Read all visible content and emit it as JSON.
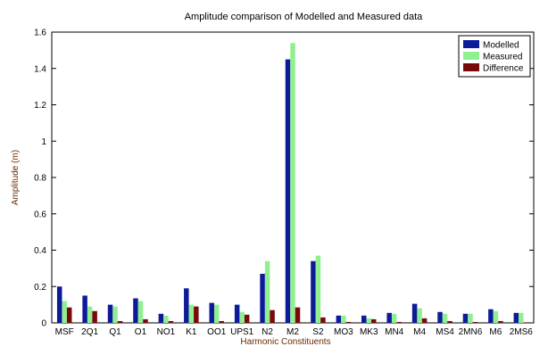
{
  "chart_data": {
    "type": "bar",
    "title": "Amplitude comparison of Modelled and Measured data",
    "xlabel": "Harmonic Constituents",
    "ylabel": "Amplitude (m)",
    "ylim": [
      0,
      1.6
    ],
    "yticks": [
      0,
      0.2,
      0.4,
      0.6,
      0.8,
      1,
      1.2,
      1.4,
      1.6
    ],
    "ytick_labels": [
      "0",
      "0.2",
      "0.4",
      "0.6",
      "0.8",
      "1",
      "1.2",
      "1.4",
      "1.6"
    ],
    "grid": false,
    "legend_position": "top-right",
    "categories": [
      "MSF",
      "2Q1",
      "Q1",
      "O1",
      "NO1",
      "K1",
      "OO1",
      "UPS1",
      "N2",
      "M2",
      "S2",
      "MO3",
      "MK3",
      "MN4",
      "M4",
      "MS4",
      "2MN6",
      "M6",
      "2MS6"
    ],
    "series": [
      {
        "name": "Modelled",
        "color": "#0d1a99",
        "values": [
          0.2,
          0.15,
          0.1,
          0.135,
          0.05,
          0.19,
          0.11,
          0.1,
          0.27,
          1.45,
          0.34,
          0.04,
          0.04,
          0.055,
          0.105,
          0.06,
          0.05,
          0.075,
          0.055
        ]
      },
      {
        "name": "Measured",
        "color": "#8ff08f",
        "values": [
          0.12,
          0.09,
          0.09,
          0.12,
          0.04,
          0.1,
          0.1,
          0.06,
          0.34,
          1.54,
          0.37,
          0.04,
          0.025,
          0.05,
          0.08,
          0.05,
          0.05,
          0.065,
          0.055
        ]
      },
      {
        "name": "Difference",
        "color": "#7a0a0a",
        "values": [
          0.085,
          0.065,
          0.01,
          0.02,
          0.01,
          0.09,
          0.01,
          0.045,
          0.07,
          0.085,
          0.03,
          0.005,
          0.02,
          0.005,
          0.025,
          0.01,
          0.005,
          0.01,
          0.003
        ]
      }
    ]
  }
}
